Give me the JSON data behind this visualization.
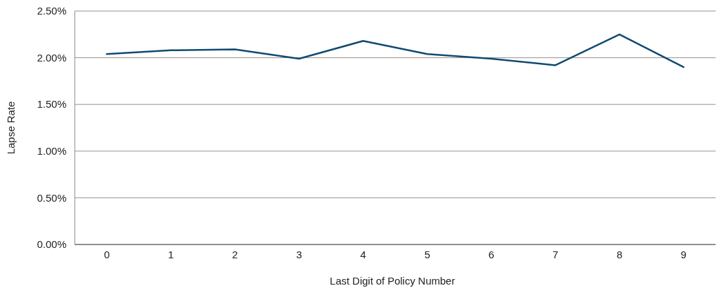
{
  "chart_data": {
    "type": "line",
    "xlabel": "Last Digit of Policy Number",
    "ylabel": "Lapse Rate",
    "categories": [
      "0",
      "1",
      "2",
      "3",
      "4",
      "5",
      "6",
      "7",
      "8",
      "9"
    ],
    "series": [
      {
        "color": "#0f4a73",
        "values": [
          2.04,
          2.08,
          2.09,
          1.99,
          2.18,
          2.04,
          1.99,
          1.92,
          2.25,
          1.9
        ]
      }
    ],
    "ylim": [
      0,
      2.5
    ],
    "yticks": [
      {
        "value": 0,
        "label": "0.00%"
      },
      {
        "value": 0.5,
        "label": "0.50%"
      },
      {
        "value": 1,
        "label": "1.00%"
      },
      {
        "value": 1.5,
        "label": "1.50%"
      },
      {
        "value": 2,
        "label": "2.00%"
      },
      {
        "value": 2.5,
        "label": "2.50%"
      }
    ],
    "grid": "y",
    "marker": "none",
    "line_style": "solid"
  }
}
